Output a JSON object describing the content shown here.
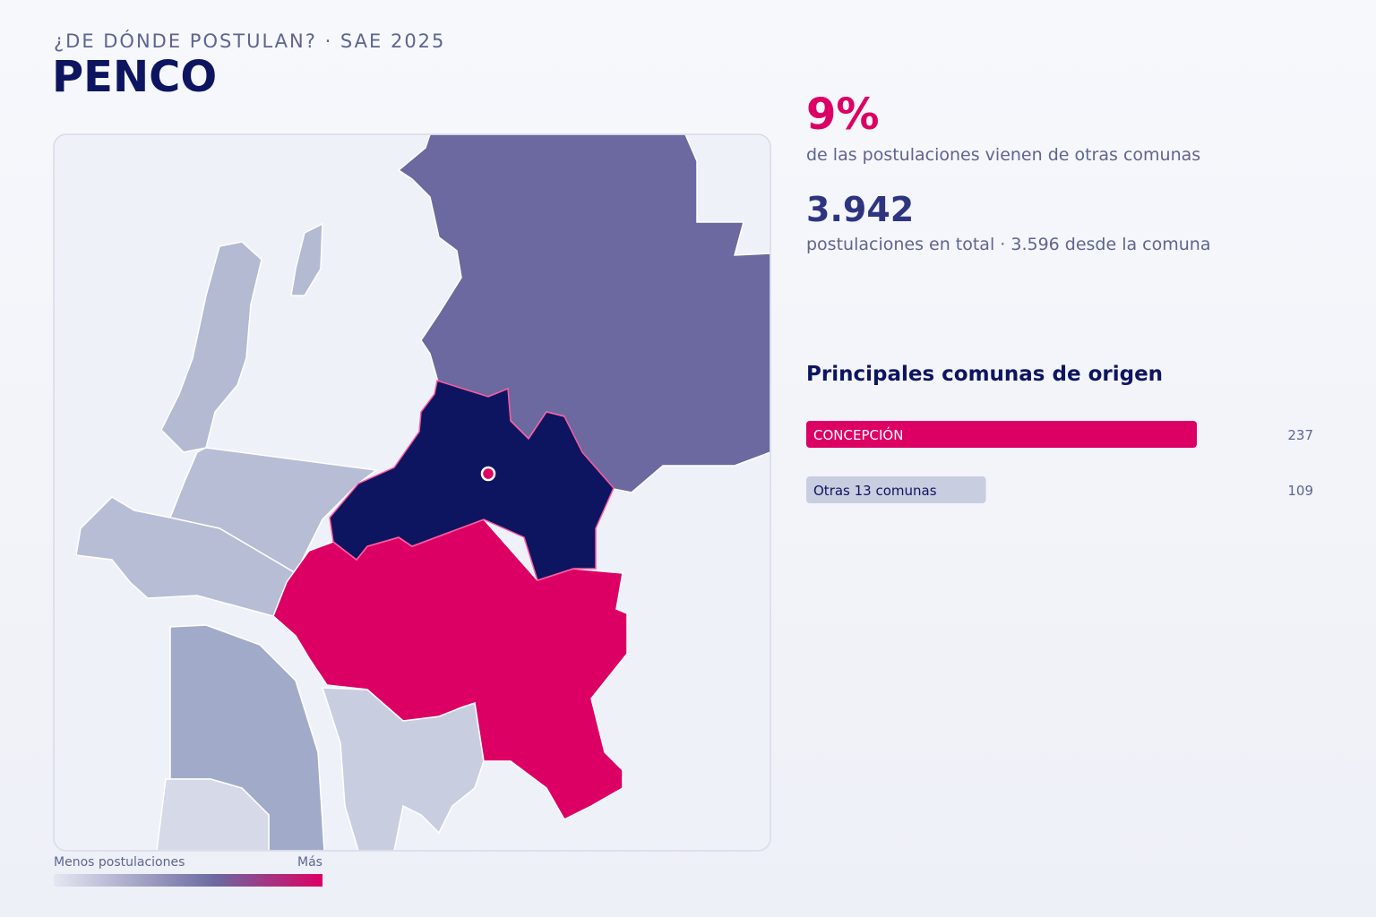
{
  "header": {
    "kicker": "¿DE DÓNDE POSTULAN? · SAE 2025",
    "title": "PENCO"
  },
  "stats": [
    {
      "value": "9%",
      "caption": "de las postulaciones vienen de otras comunas"
    },
    {
      "value": "3.942",
      "caption": "postulaciones en total · 3.596 desde la comuna"
    }
  ],
  "legend": {
    "low": "Menos postulaciones",
    "high": "Más"
  },
  "chart_data": {
    "type": "bar",
    "title": "Principales comunas de origen",
    "categories": [
      "CONCEPCIÓN",
      "Otras 13 comunas"
    ],
    "values": [
      237,
      109
    ],
    "colors": [
      "#dc0064",
      "#c9cde0"
    ],
    "label_colors": [
      "#ffffff",
      "#0e1560"
    ]
  }
}
